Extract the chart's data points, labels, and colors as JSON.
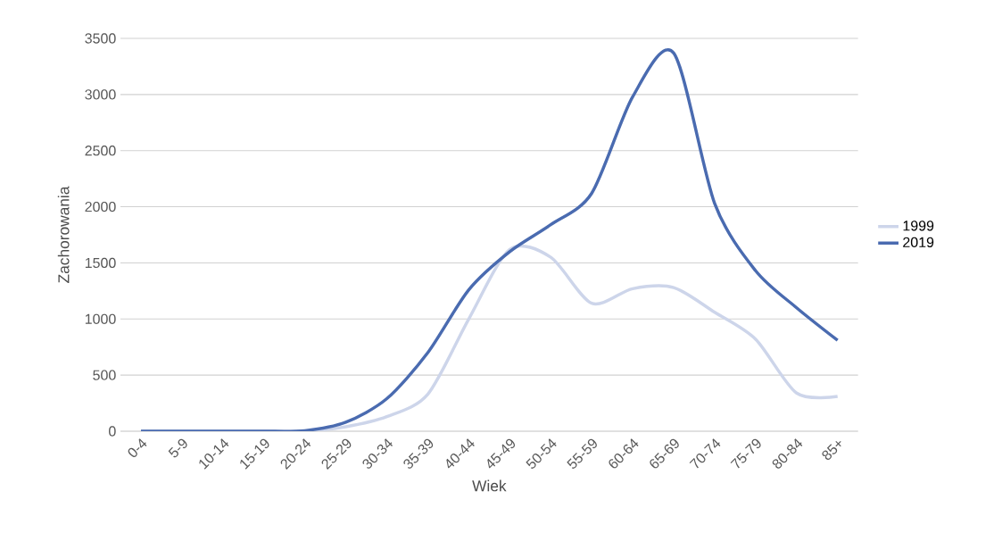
{
  "chart_data": {
    "type": "line",
    "xlabel": "Wiek",
    "ylabel": "Zachorowania",
    "categories": [
      "0-4",
      "5-9",
      "10-14",
      "15-19",
      "20-24",
      "25-29",
      "30-34",
      "35-39",
      "40-44",
      "45-49",
      "50-54",
      "55-59",
      "60-64",
      "65-69",
      "70-74",
      "75-79",
      "80-84",
      "85+"
    ],
    "series": [
      {
        "name": "1999",
        "color": "#cdd5ea",
        "values": [
          0,
          0,
          0,
          0,
          0,
          40,
          130,
          330,
          1000,
          1620,
          1550,
          1140,
          1270,
          1280,
          1060,
          820,
          340,
          310
        ]
      },
      {
        "name": "2019",
        "color": "#4a6bb0",
        "values": [
          0,
          0,
          0,
          0,
          5,
          80,
          290,
          700,
          1260,
          1600,
          1840,
          2120,
          2980,
          3370,
          2030,
          1430,
          1100,
          810
        ]
      }
    ],
    "ylim": [
      0,
      3500
    ],
    "yticks": [
      0,
      500,
      1000,
      1500,
      2000,
      2500,
      3000,
      3500
    ],
    "grid": "y",
    "legend": "right",
    "marker": "none",
    "line_style": "solid"
  }
}
